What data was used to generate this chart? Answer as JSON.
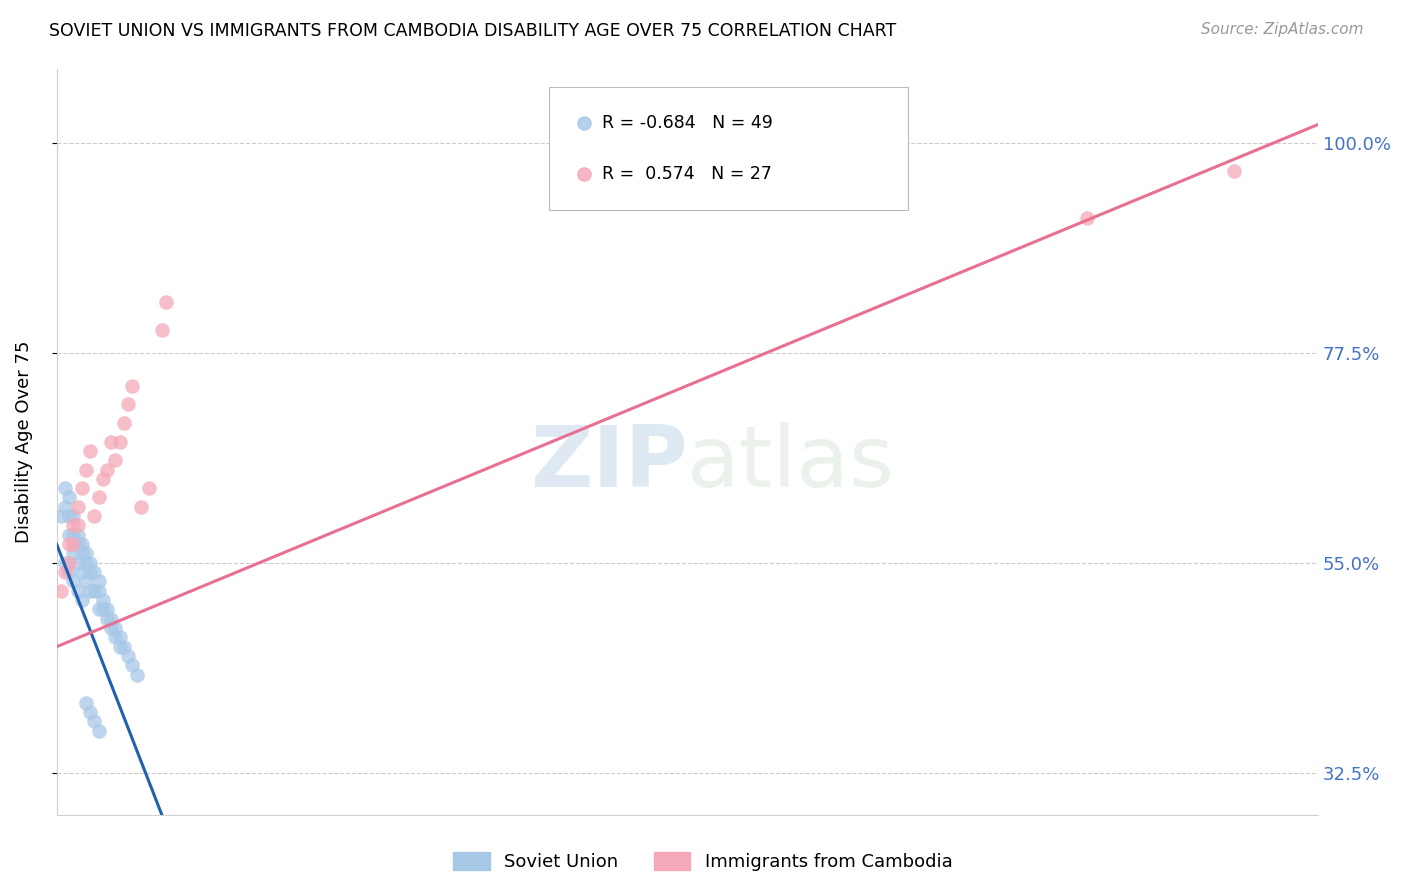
{
  "title": "SOVIET UNION VS IMMIGRANTS FROM CAMBODIA DISABILITY AGE OVER 75 CORRELATION CHART",
  "source": "Source: ZipAtlas.com",
  "ylabel": "Disability Age Over 75",
  "yticks": [
    0.325,
    0.55,
    0.775,
    1.0
  ],
  "ytick_labels": [
    "32.5%",
    "55.0%",
    "77.5%",
    "100.0%"
  ],
  "xmin": 0.0,
  "xmax": 0.3,
  "ymin": 0.28,
  "ymax": 1.08,
  "legend_r_blue": "-0.684",
  "legend_n_blue": "49",
  "legend_r_pink": "0.574",
  "legend_n_pink": "27",
  "blue_color": "#a8c8e8",
  "pink_color": "#f4a8b8",
  "blue_line_color": "#2060b0",
  "pink_line_color": "#e87090",
  "soviet_x": [
    0.001,
    0.002,
    0.002,
    0.003,
    0.003,
    0.003,
    0.004,
    0.004,
    0.004,
    0.005,
    0.005,
    0.005,
    0.006,
    0.006,
    0.006,
    0.007,
    0.007,
    0.007,
    0.008,
    0.008,
    0.008,
    0.009,
    0.009,
    0.01,
    0.01,
    0.01,
    0.011,
    0.011,
    0.012,
    0.012,
    0.013,
    0.013,
    0.014,
    0.014,
    0.015,
    0.015,
    0.016,
    0.017,
    0.018,
    0.019,
    0.002,
    0.003,
    0.004,
    0.005,
    0.006,
    0.007,
    0.008,
    0.009,
    0.01
  ],
  "soviet_y": [
    0.6,
    0.63,
    0.61,
    0.62,
    0.6,
    0.58,
    0.6,
    0.58,
    0.56,
    0.58,
    0.57,
    0.55,
    0.57,
    0.56,
    0.54,
    0.56,
    0.55,
    0.53,
    0.55,
    0.54,
    0.52,
    0.54,
    0.52,
    0.53,
    0.52,
    0.5,
    0.51,
    0.5,
    0.5,
    0.49,
    0.49,
    0.48,
    0.48,
    0.47,
    0.47,
    0.46,
    0.46,
    0.45,
    0.44,
    0.43,
    0.55,
    0.54,
    0.53,
    0.52,
    0.51,
    0.4,
    0.39,
    0.38,
    0.37
  ],
  "cambodia_x": [
    0.001,
    0.002,
    0.003,
    0.003,
    0.004,
    0.004,
    0.005,
    0.005,
    0.006,
    0.007,
    0.008,
    0.009,
    0.01,
    0.011,
    0.012,
    0.013,
    0.014,
    0.015,
    0.016,
    0.017,
    0.018,
    0.02,
    0.022,
    0.025,
    0.026,
    0.245,
    0.28
  ],
  "cambodia_y": [
    0.52,
    0.54,
    0.57,
    0.55,
    0.59,
    0.57,
    0.61,
    0.59,
    0.63,
    0.65,
    0.67,
    0.6,
    0.62,
    0.64,
    0.65,
    0.68,
    0.66,
    0.68,
    0.7,
    0.72,
    0.74,
    0.61,
    0.63,
    0.8,
    0.83,
    0.92,
    0.97
  ],
  "blue_line_x": [
    0.0,
    0.025
  ],
  "blue_line_y": [
    0.57,
    0.28
  ],
  "pink_line_x": [
    0.0,
    0.3
  ],
  "pink_line_y": [
    0.46,
    1.02
  ]
}
